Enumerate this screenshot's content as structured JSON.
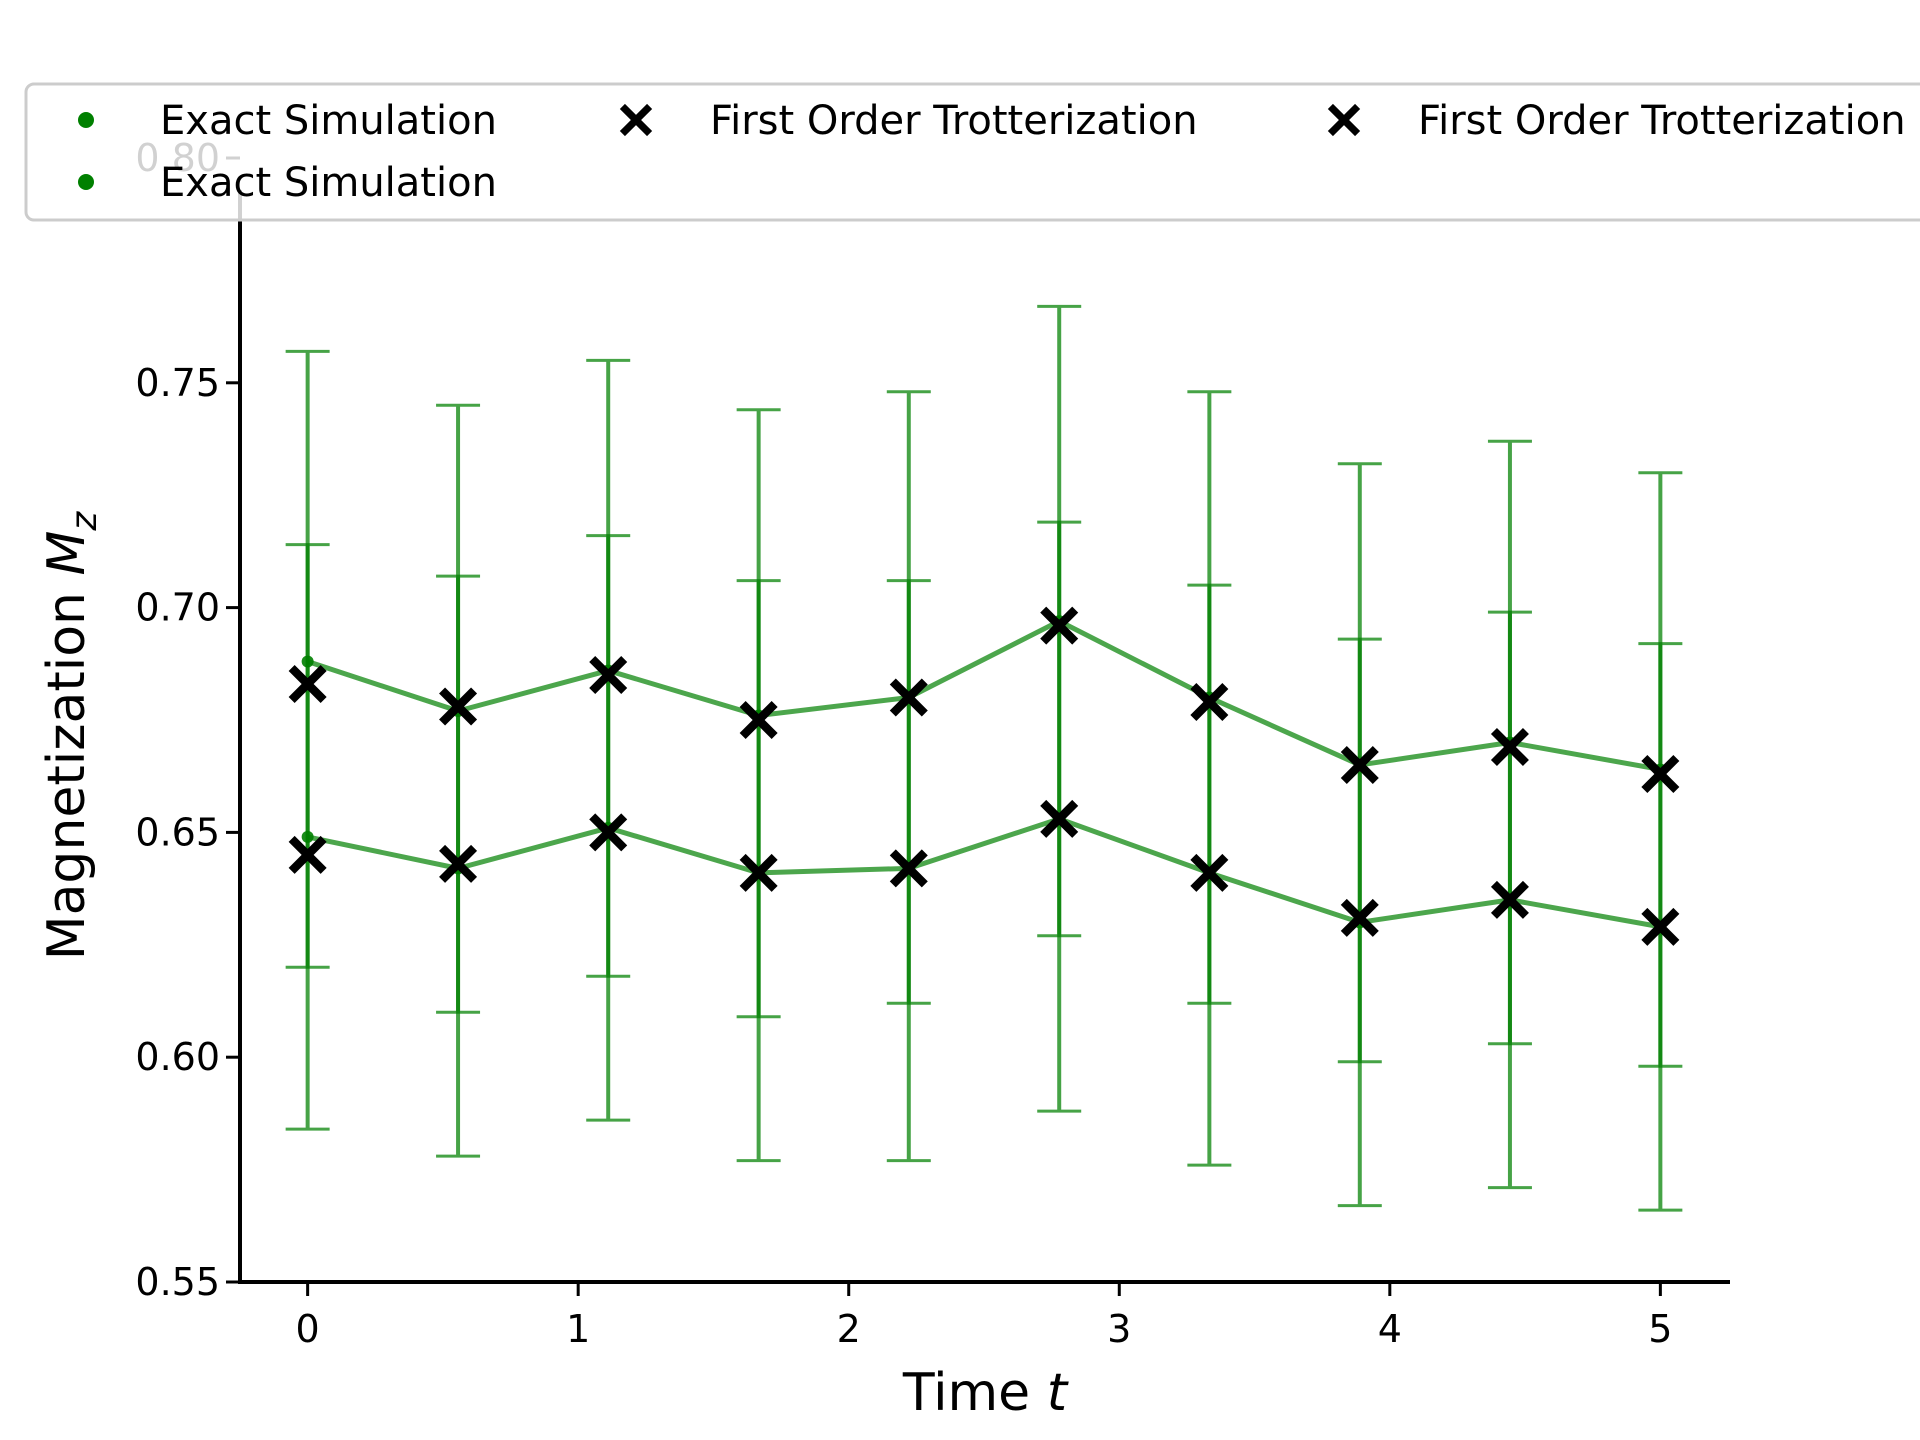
{
  "chart_data": {
    "type": "line",
    "xlabel": "Time",
    "xlabel_var": "t",
    "ylabel": "Magnetization",
    "ylabel_var": "M",
    "ylabel_sub": "z",
    "xlim": [
      -0.25,
      5.25
    ],
    "ylim": [
      0.55,
      0.8
    ],
    "xticks": [
      "0",
      "1",
      "2",
      "3",
      "4",
      "5"
    ],
    "yticks": [
      "0.55",
      "0.60",
      "0.65",
      "0.70",
      "0.75",
      "0.80"
    ],
    "grid": false,
    "legend_position": "top",
    "x": [
      0,
      0.556,
      1.111,
      1.667,
      2.222,
      2.778,
      3.333,
      3.889,
      4.444,
      5.0
    ],
    "series": [
      {
        "name": "Exact Simulation",
        "kind": "exact",
        "color": "#008000",
        "values": [
          0.688,
          0.677,
          0.686,
          0.676,
          0.68,
          0.697,
          0.68,
          0.665,
          0.67,
          0.664
        ],
        "err_low": [
          0.584,
          0.578,
          0.586,
          0.577,
          0.577,
          0.588,
          0.576,
          0.567,
          0.571,
          0.566
        ],
        "err_high": [
          0.757,
          0.745,
          0.755,
          0.744,
          0.748,
          0.767,
          0.748,
          0.732,
          0.737,
          0.73
        ]
      },
      {
        "name": "Exact Simulation",
        "kind": "exact",
        "color": "#008000",
        "values": [
          0.649,
          0.642,
          0.651,
          0.641,
          0.642,
          0.653,
          0.641,
          0.63,
          0.635,
          0.629
        ],
        "err_low": [
          0.62,
          0.61,
          0.618,
          0.609,
          0.612,
          0.627,
          0.612,
          0.599,
          0.603,
          0.598
        ],
        "err_high": [
          0.714,
          0.707,
          0.716,
          0.706,
          0.706,
          0.719,
          0.705,
          0.693,
          0.699,
          0.692
        ]
      },
      {
        "name": "First Order Trotterization",
        "kind": "trotter",
        "color": "#000000",
        "values": [
          0.683,
          0.678,
          0.685,
          0.675,
          0.68,
          0.696,
          0.679,
          0.665,
          0.669,
          0.663
        ]
      },
      {
        "name": "First Order Trotterization",
        "kind": "trotter",
        "color": "#000000",
        "values": [
          0.645,
          0.643,
          0.65,
          0.641,
          0.642,
          0.653,
          0.641,
          0.631,
          0.635,
          0.629
        ]
      }
    ]
  }
}
